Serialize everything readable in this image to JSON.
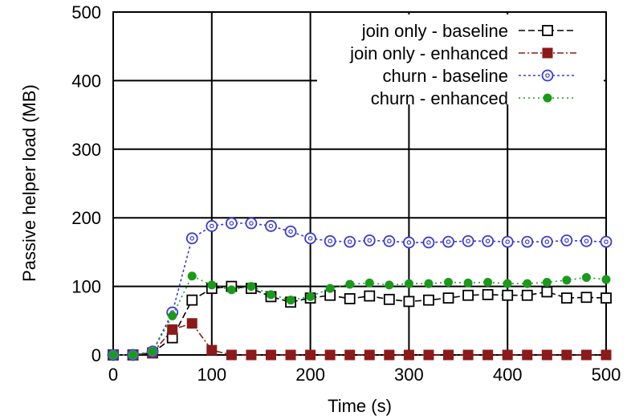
{
  "chart_data": {
    "type": "line",
    "title": "",
    "xlabel": "Time (s)",
    "ylabel": "Passive helper load (MB)",
    "xlim": [
      0,
      500
    ],
    "ylim": [
      0,
      500
    ],
    "x_ticks": [
      "0",
      "100",
      "200",
      "300",
      "400",
      "500"
    ],
    "y_ticks": [
      "0",
      "100",
      "200",
      "300",
      "400",
      "500"
    ],
    "grid": true,
    "legend_position": "top-right",
    "x": [
      0,
      20,
      40,
      60,
      80,
      100,
      120,
      140,
      160,
      180,
      200,
      220,
      240,
      260,
      280,
      300,
      320,
      340,
      360,
      380,
      400,
      420,
      440,
      460,
      480,
      500
    ],
    "series": [
      {
        "name": "join only - baseline",
        "color": "#000000",
        "marker": "open-square",
        "values": [
          0,
          0,
          3,
          25,
          80,
          97,
          100,
          97,
          85,
          77,
          83,
          87,
          82,
          86,
          81,
          78,
          80,
          83,
          87,
          88,
          87,
          87,
          92,
          83,
          84,
          83
        ]
      },
      {
        "name": "join only - enhanced",
        "color": "#8b1a1a",
        "marker": "filled-square",
        "values": [
          0,
          0,
          3,
          37,
          46,
          7,
          0,
          0,
          0,
          0,
          0,
          0,
          0,
          0,
          0,
          0,
          0,
          0,
          0,
          0,
          0,
          0,
          0,
          0,
          0,
          0
        ]
      },
      {
        "name": "churn - baseline",
        "color": "#3a3ad0",
        "marker": "open-circle",
        "values": [
          0,
          0,
          5,
          62,
          170,
          188,
          192,
          192,
          188,
          180,
          170,
          166,
          165,
          167,
          166,
          164,
          164,
          165,
          166,
          166,
          165,
          165,
          165,
          167,
          166,
          165
        ]
      },
      {
        "name": "churn - enhanced",
        "color": "#1a9a1a",
        "marker": "filled-circle",
        "values": [
          0,
          0,
          5,
          57,
          115,
          102,
          95,
          100,
          88,
          80,
          85,
          97,
          103,
          105,
          102,
          104,
          104,
          106,
          105,
          106,
          104,
          104,
          106,
          109,
          113,
          110
        ]
      }
    ]
  }
}
